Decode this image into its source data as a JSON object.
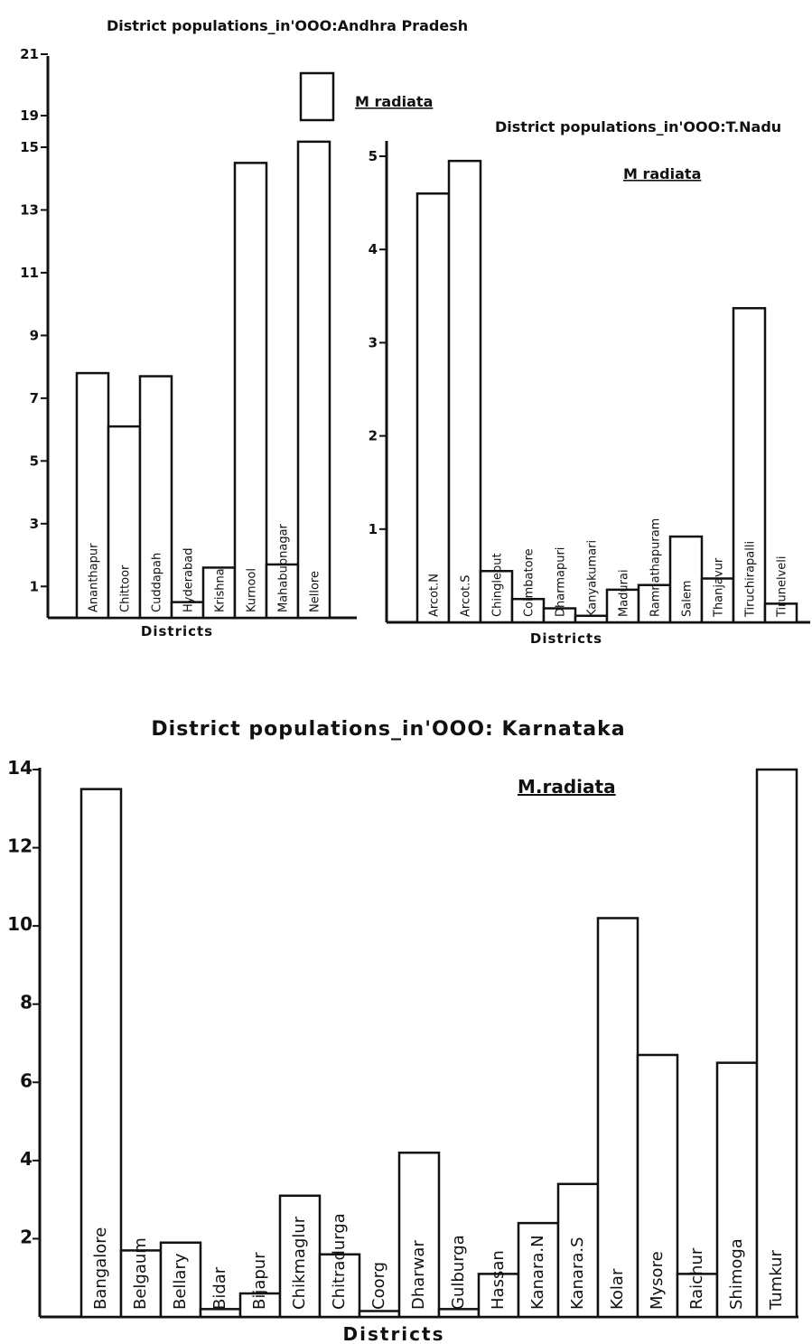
{
  "chart_data": [
    {
      "type": "bar",
      "title": "District populations_in'OOO:Andhra Pradesh",
      "xlabel": "Districts",
      "ylabel": "",
      "legend": "M radiata",
      "yticks": [
        "1",
        "3",
        "5",
        "7",
        "9",
        "11",
        "13",
        "15",
        "19",
        "21"
      ],
      "categories": [
        "Ananthapur",
        "Chittoor",
        "Cuddapah",
        "Hyderabad",
        "Krishna",
        "Kurnool",
        "Mahabubnagar",
        "Nellore"
      ],
      "values": [
        7.8,
        6.1,
        7.7,
        0.5,
        1.6,
        14.5,
        1.7,
        15.7
      ]
    },
    {
      "type": "bar",
      "title": "District populations_in'OOO:T.Nadu",
      "xlabel": "Districts",
      "ylabel": "",
      "legend": "M radiata",
      "yticks": [
        "1",
        "2",
        "3",
        "4",
        "5"
      ],
      "categories": [
        "Arcot.N",
        "Arcot.S",
        "Chingleput",
        "Coimbatore",
        "Dharmapuri",
        "Kanyakumari",
        "Madurai",
        "Ramnathapuram",
        "Salem",
        "Thanjavur",
        "Tiruchirapalli",
        "Tirunelveli"
      ],
      "values": [
        4.6,
        4.95,
        0.55,
        0.25,
        0.15,
        0.07,
        0.35,
        0.4,
        0.92,
        0.47,
        3.37,
        0.2
      ]
    },
    {
      "type": "bar",
      "title": "District populations_in'OOO: Karnataka",
      "xlabel": "Districts",
      "ylabel": "",
      "legend": "M.radiata",
      "yticks": [
        "2",
        "4",
        "6",
        "8",
        "10",
        "12",
        "14"
      ],
      "categories": [
        "Bangalore",
        "Belgaum",
        "Bellary",
        "Bidar",
        "Bijapur",
        "Chikmaglur",
        "Chitradurga",
        "Coorg",
        "Dharwar",
        "Gulburga",
        "Hassan",
        "Kanara.N",
        "Kanara.S",
        "Kolar",
        "Mysore",
        "Raichur",
        "Shimoga",
        "Tumkur"
      ],
      "values": [
        13.5,
        1.7,
        1.9,
        0.2,
        0.6,
        3.1,
        1.6,
        0.15,
        4.2,
        0.2,
        1.1,
        2.4,
        3.4,
        10.2,
        6.7,
        1.1,
        6.5,
        14.0
      ]
    }
  ]
}
